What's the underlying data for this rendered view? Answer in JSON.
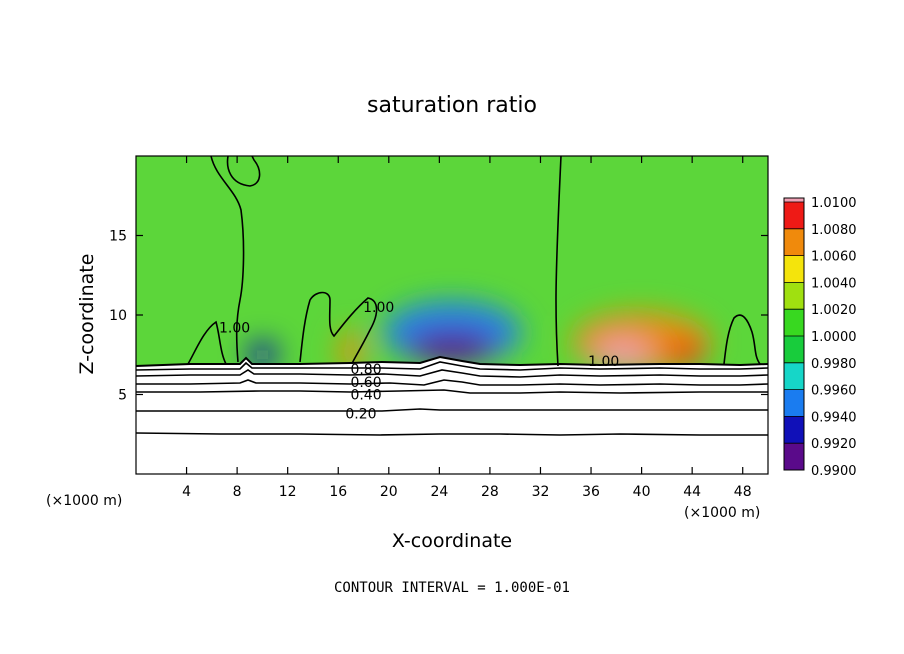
{
  "chart_data": {
    "type": "heatmap",
    "title": "saturation ratio",
    "xlabel": "X-coordinate",
    "ylabel": "Z-coordinate",
    "x_unit": "(×1000 m)",
    "footer": "CONTOUR INTERVAL = 1.000E-01",
    "xlim": [
      0,
      50
    ],
    "ylim": [
      0,
      20
    ],
    "x_ticks": [
      {
        "value": 4,
        "label": "4"
      },
      {
        "value": 8,
        "label": "8"
      },
      {
        "value": 12,
        "label": "12"
      },
      {
        "value": 16,
        "label": "16"
      },
      {
        "value": 20,
        "label": "20"
      },
      {
        "value": 24,
        "label": "24"
      },
      {
        "value": 28,
        "label": "28"
      },
      {
        "value": 32,
        "label": "32"
      },
      {
        "value": 36,
        "label": "36"
      },
      {
        "value": 40,
        "label": "40"
      },
      {
        "value": 44,
        "label": "44"
      },
      {
        "value": 48,
        "label": "48"
      }
    ],
    "y_ticks": [
      {
        "value": 5,
        "label": "5"
      },
      {
        "value": 10,
        "label": "10"
      },
      {
        "value": 15,
        "label": "15"
      }
    ],
    "colorbar": {
      "levels": [
        {
          "value": 0.99,
          "label": "0.9900",
          "color": "#5a0a8a"
        },
        {
          "value": 0.992,
          "label": "0.9920",
          "color": "#1010b8"
        },
        {
          "value": 0.994,
          "label": "0.9940",
          "color": "#1a7cf0"
        },
        {
          "value": 0.996,
          "label": "0.9960",
          "color": "#16d6c8"
        },
        {
          "value": 0.998,
          "label": "0.9980",
          "color": "#18cc3c"
        },
        {
          "value": 1.0,
          "label": "1.0000",
          "color": "#38d820"
        },
        {
          "value": 1.002,
          "label": "1.0020",
          "color": "#a0e010"
        },
        {
          "value": 1.004,
          "label": "1.0040",
          "color": "#f4e40c"
        },
        {
          "value": 1.006,
          "label": "1.0060",
          "color": "#f08a0c"
        },
        {
          "value": 1.008,
          "label": "1.0080",
          "color": "#ee1a16"
        },
        {
          "value": 1.01,
          "label": "1.0100",
          "color": "#f0a0b4"
        }
      ]
    },
    "contour_labels": [
      {
        "x": 18.2,
        "z": 6.6,
        "label": "0.80"
      },
      {
        "x": 18.2,
        "z": 5.8,
        "label": "0.60"
      },
      {
        "x": 18.2,
        "z": 5.0,
        "label": "0.40"
      },
      {
        "x": 17.8,
        "z": 3.8,
        "label": "0.20"
      },
      {
        "x": 37.0,
        "z": 7.1,
        "label": "1.00"
      },
      {
        "x": 7.8,
        "z": 9.2,
        "label": "1.00"
      },
      {
        "x": 19.2,
        "z": 10.5,
        "label": "1.00"
      }
    ],
    "field_features": [
      {
        "kind": "dry",
        "x": 25.0,
        "z": 8.9,
        "rx": 5.5,
        "rz": 2.0,
        "value": 0.9935
      },
      {
        "kind": "dry",
        "x": 25.0,
        "z": 8.0,
        "rx": 3.5,
        "rz": 1.0,
        "value": 0.991
      },
      {
        "kind": "dry",
        "x": 10.0,
        "z": 7.5,
        "rx": 1.2,
        "rz": 0.8,
        "value": 0.9925
      },
      {
        "kind": "moist",
        "x": 40.0,
        "z": 8.3,
        "rx": 5.5,
        "rz": 1.9,
        "value": 1.007
      },
      {
        "kind": "moist",
        "x": 38.5,
        "z": 7.6,
        "rx": 2.2,
        "rz": 0.9,
        "value": 1.0095
      },
      {
        "kind": "moist",
        "x": 43.5,
        "z": 7.6,
        "rx": 1.5,
        "rz": 0.7,
        "value": 1.0085
      },
      {
        "kind": "moist",
        "x": 17.0,
        "z": 7.7,
        "rx": 0.9,
        "rz": 1.4,
        "value": 1.0055
      }
    ]
  }
}
